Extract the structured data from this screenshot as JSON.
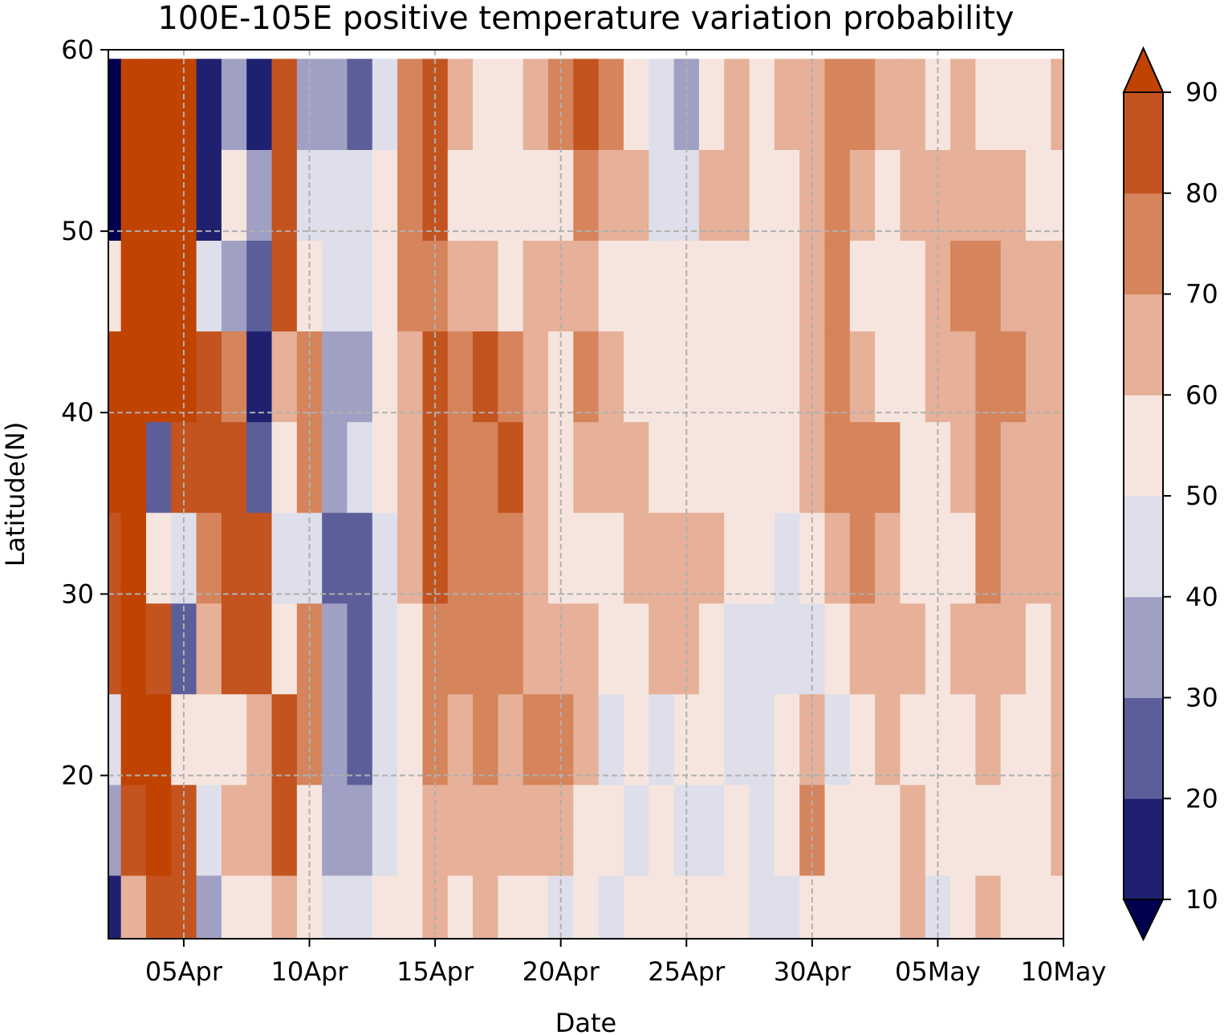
{
  "chart_data": {
    "type": "heatmap",
    "subtype": "filled-contour",
    "title": "100E-105E positive temperature variation probability",
    "xlabel": "Date",
    "ylabel": "Latitude(N)",
    "x_ticks": [
      "05Apr",
      "10Apr",
      "15Apr",
      "20Apr",
      "25Apr",
      "30Apr",
      "05May",
      "10May"
    ],
    "x_range": [
      "02Apr",
      "10May"
    ],
    "y_ticks": [
      20,
      30,
      40,
      50,
      60
    ],
    "ylim": [
      11,
      60
    ],
    "grid": true,
    "colorbar": {
      "location": "right",
      "extend": "both",
      "levels": [
        10,
        20,
        30,
        40,
        50,
        60,
        70,
        80,
        90
      ],
      "tick_labels": [
        "10",
        "20",
        "30",
        "40",
        "50",
        "60",
        "70",
        "80",
        "90"
      ],
      "colors": [
        "#000050",
        "#1f2170",
        "#5c5e99",
        "#a0a0c4",
        "#dedfea",
        "#f6e5df",
        "#e6b099",
        "#d5845b",
        "#c3531f",
        "#c04302"
      ]
    },
    "columns": [
      {
        "date": "02Apr",
        "values": [
          12,
          30,
          40,
          85,
          88,
          92,
          94,
          55,
          8,
          8
        ]
      },
      {
        "date": "03Apr",
        "values": [
          65,
          80,
          90,
          93,
          94,
          94,
          92,
          90,
          92,
          93
        ]
      },
      {
        "date": "04Apr",
        "values": [
          88,
          93,
          92,
          80,
          52,
          22,
          92,
          94,
          93,
          94
        ]
      },
      {
        "date": "05Apr",
        "values": [
          85,
          80,
          55,
          20,
          45,
          88,
          92,
          92,
          90,
          92
        ]
      },
      {
        "date": "06Apr",
        "values": [
          38,
          40,
          52,
          60,
          75,
          88,
          85,
          40,
          18,
          10
        ]
      },
      {
        "date": "07Apr",
        "values": [
          55,
          62,
          55,
          82,
          85,
          80,
          70,
          35,
          52,
          30
        ]
      },
      {
        "date": "08Apr",
        "values": [
          52,
          60,
          62,
          84,
          82,
          20,
          10,
          25,
          30,
          15
        ]
      },
      {
        "date": "09Apr",
        "values": [
          68,
          82,
          80,
          52,
          46,
          58,
          68,
          84,
          88,
          82
        ]
      },
      {
        "date": "10Apr",
        "values": [
          55,
          58,
          70,
          72,
          46,
          75,
          78,
          50,
          40,
          30
        ]
      },
      {
        "date": "11Apr",
        "values": [
          45,
          38,
          32,
          30,
          28,
          30,
          35,
          42,
          46,
          38
        ]
      },
      {
        "date": "12Apr",
        "values": [
          45,
          35,
          22,
          20,
          25,
          40,
          30,
          48,
          40,
          28
        ]
      },
      {
        "date": "13Apr",
        "values": [
          50,
          46,
          48,
          42,
          45,
          50,
          55,
          52,
          50,
          42
        ]
      },
      {
        "date": "14Apr",
        "values": [
          52,
          55,
          58,
          55,
          60,
          62,
          60,
          70,
          72,
          70
        ]
      },
      {
        "date": "15Apr",
        "values": [
          62,
          68,
          70,
          76,
          80,
          85,
          82,
          76,
          84,
          82
        ]
      },
      {
        "date": "16Apr",
        "values": [
          55,
          60,
          62,
          70,
          72,
          76,
          72,
          60,
          56,
          62
        ]
      },
      {
        "date": "17Apr",
        "values": [
          60,
          65,
          75,
          72,
          70,
          75,
          82,
          62,
          55,
          56
        ]
      },
      {
        "date": "18Apr",
        "values": [
          56,
          60,
          66,
          75,
          72,
          80,
          76,
          58,
          55,
          55
        ]
      },
      {
        "date": "19Apr",
        "values": [
          50,
          62,
          70,
          68,
          62,
          62,
          60,
          60,
          52,
          62
        ]
      },
      {
        "date": "20Apr",
        "values": [
          46,
          62,
          74,
          62,
          56,
          55,
          58,
          60,
          58,
          70
        ]
      },
      {
        "date": "21Apr",
        "values": [
          52,
          58,
          65,
          62,
          52,
          66,
          72,
          62,
          76,
          85
        ]
      },
      {
        "date": "22Apr",
        "values": [
          48,
          55,
          46,
          52,
          56,
          60,
          62,
          58,
          66,
          70
        ]
      },
      {
        "date": "23Apr",
        "values": [
          52,
          48,
          56,
          55,
          62,
          62,
          55,
          58,
          60,
          52
        ]
      },
      {
        "date": "24Apr",
        "values": [
          58,
          52,
          48,
          68,
          60,
          54,
          56,
          56,
          46,
          42
        ]
      },
      {
        "date": "25Apr",
        "values": [
          52,
          46,
          54,
          62,
          62,
          56,
          56,
          54,
          40,
          32
        ]
      },
      {
        "date": "26Apr",
        "values": [
          56,
          48,
          52,
          58,
          60,
          54,
          56,
          58,
          62,
          56
        ]
      },
      {
        "date": "27Apr",
        "values": [
          50,
          54,
          46,
          48,
          52,
          56,
          54,
          56,
          62,
          66
        ]
      },
      {
        "date": "28Apr",
        "values": [
          48,
          46,
          40,
          44,
          50,
          54,
          56,
          52,
          56,
          55
        ]
      },
      {
        "date": "29Apr",
        "values": [
          46,
          52,
          52,
          40,
          45,
          54,
          56,
          50,
          56,
          62
        ]
      },
      {
        "date": "30Apr",
        "values": [
          56,
          76,
          62,
          46,
          58,
          66,
          68,
          62,
          62,
          66
        ]
      },
      {
        "date": "01May",
        "values": [
          56,
          52,
          42,
          58,
          66,
          72,
          75,
          70,
          74,
          72
        ]
      },
      {
        "date": "02May",
        "values": [
          55,
          54,
          58,
          64,
          70,
          74,
          62,
          58,
          62,
          75
        ]
      },
      {
        "date": "03May",
        "values": [
          54,
          58,
          62,
          62,
          66,
          70,
          58,
          56,
          54,
          68
        ]
      },
      {
        "date": "04May",
        "values": [
          62,
          60,
          58,
          60,
          54,
          58,
          56,
          52,
          60,
          62
        ]
      },
      {
        "date": "05May",
        "values": [
          46,
          50,
          54,
          52,
          54,
          56,
          62,
          60,
          60,
          58
        ]
      },
      {
        "date": "06May",
        "values": [
          54,
          56,
          58,
          60,
          56,
          62,
          66,
          74,
          62,
          62
        ]
      },
      {
        "date": "07May",
        "values": [
          62,
          56,
          62,
          66,
          72,
          70,
          75,
          70,
          62,
          56
        ]
      },
      {
        "date": "08May",
        "values": [
          54,
          58,
          56,
          60,
          64,
          66,
          70,
          66,
          60,
          58
        ]
      },
      {
        "date": "09May",
        "values": [
          56,
          56,
          54,
          58,
          62,
          60,
          62,
          62,
          56,
          52
        ]
      },
      {
        "date": "10May",
        "values": [
          56,
          60,
          62,
          66,
          66,
          62,
          60,
          62,
          58,
          62
        ]
      }
    ],
    "row_latitudes": [
      12,
      17,
      22,
      27,
      32,
      37,
      42,
      47,
      52,
      57
    ],
    "data_resolution": "1 day x 5 degrees, read approximately from the contour plot"
  }
}
